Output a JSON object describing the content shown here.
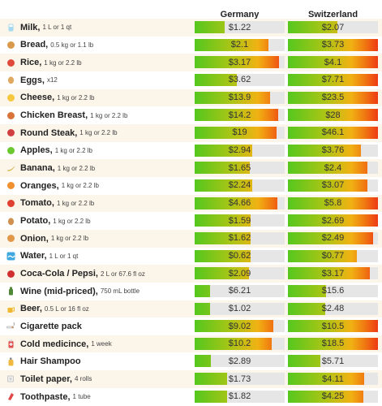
{
  "columns": [
    "Germany",
    "Switzerland"
  ],
  "items": [
    {
      "name": "Milk,",
      "unit": "1 L or 1 qt",
      "icon": "milk-icon",
      "color": "#a6d8f0",
      "de": "$1.22",
      "ch": "$2.07",
      "de_fill": 0.33,
      "ch_fill": 0.55
    },
    {
      "name": "Bread,",
      "unit": "0.5 kg or 1.1 lb",
      "icon": "bread-icon",
      "color": "#d89a4a",
      "de": "$2.1",
      "ch": "$3.73",
      "de_fill": 0.82,
      "ch_fill": 1.0
    },
    {
      "name": "Rice,",
      "unit": "1 kg or 2.2 lb",
      "icon": "rice-icon",
      "color": "#e04a3a",
      "de": "$3.17",
      "ch": "$4.1",
      "de_fill": 0.94,
      "ch_fill": 1.0
    },
    {
      "name": "Eggs,",
      "unit": "x12",
      "icon": "egg-icon",
      "color": "#e0a860",
      "de": "$3.62",
      "ch": "$7.71",
      "de_fill": 0.47,
      "ch_fill": 1.0
    },
    {
      "name": "Cheese,",
      "unit": "1 kg or 2.2 lb",
      "icon": "cheese-icon",
      "color": "#f5c840",
      "de": "$13.9",
      "ch": "$23.5",
      "de_fill": 0.84,
      "ch_fill": 1.0
    },
    {
      "name": "Chicken Breast,",
      "unit": "1 kg or 2.2 lb",
      "icon": "chicken-icon",
      "color": "#d8743a",
      "de": "$14.2",
      "ch": "$28",
      "de_fill": 0.93,
      "ch_fill": 1.0
    },
    {
      "name": "Round Steak,",
      "unit": "1 kg or 2.2 lb",
      "icon": "steak-icon",
      "color": "#d04040",
      "de": "$19",
      "ch": "$46.1",
      "de_fill": 0.91,
      "ch_fill": 1.0
    },
    {
      "name": "Apples,",
      "unit": "1 kg or 2.2 lb",
      "icon": "apple-icon",
      "color": "#6cc830",
      "de": "$2.94",
      "ch": "$3.76",
      "de_fill": 0.64,
      "ch_fill": 0.81
    },
    {
      "name": "Banana,",
      "unit": "1 kg or 2.2 lb",
      "icon": "banana-icon",
      "color": "#f0d040",
      "de": "$1.65",
      "ch": "$2.4",
      "de_fill": 0.61,
      "ch_fill": 0.88
    },
    {
      "name": "Oranges,",
      "unit": "1 kg or 2.2 lb",
      "icon": "orange-icon",
      "color": "#f09030",
      "de": "$2.24",
      "ch": "$3.07",
      "de_fill": 0.64,
      "ch_fill": 0.88
    },
    {
      "name": "Tomato,",
      "unit": "1 kg or 2.2 lb",
      "icon": "tomato-icon",
      "color": "#e04030",
      "de": "$4.66",
      "ch": "$5.8",
      "de_fill": 0.92,
      "ch_fill": 1.0
    },
    {
      "name": "Potato,",
      "unit": "1 kg or 2.2 lb",
      "icon": "potato-icon",
      "color": "#d09050",
      "de": "$1.59",
      "ch": "$2.69",
      "de_fill": 0.62,
      "ch_fill": 1.0
    },
    {
      "name": "Onion,",
      "unit": "1 kg or 2.2 lb",
      "icon": "onion-icon",
      "color": "#e09848",
      "de": "$1.62",
      "ch": "$2.49",
      "de_fill": 0.62,
      "ch_fill": 0.95
    },
    {
      "name": "Water,",
      "unit": "1 L or 1 qt",
      "icon": "water-icon",
      "color": "#40a8e0",
      "de": "$0.62",
      "ch": "$0.77",
      "de_fill": 0.62,
      "ch_fill": 0.77
    },
    {
      "name": "Coca-Cola / Pepsi,",
      "unit": "2 L or 67.6 fl oz",
      "icon": "soda-icon",
      "color": "#d03030",
      "de": "$2.09",
      "ch": "$3.17",
      "de_fill": 0.6,
      "ch_fill": 0.91
    },
    {
      "name": "Wine (mid-priced),",
      "unit": "750 mL bottle",
      "icon": "wine-icon",
      "color": "#508838",
      "de": "$6.21",
      "ch": "$15.6",
      "de_fill": 0.17,
      "ch_fill": 0.42
    },
    {
      "name": "Beer,",
      "unit": "0.5 L or 16 fl oz",
      "icon": "beer-icon",
      "color": "#f0b830",
      "de": "$1.02",
      "ch": "$2.48",
      "de_fill": 0.17,
      "ch_fill": 0.41
    },
    {
      "name": "Cigarette pack",
      "unit": "",
      "icon": "cigarette-icon",
      "color": "#c89060",
      "de": "$9.02",
      "ch": "$10.5",
      "de_fill": 0.87,
      "ch_fill": 1.0
    },
    {
      "name": "Cold medicince,",
      "unit": "1 week",
      "icon": "medicine-icon",
      "color": "#e05050",
      "de": "$10.2",
      "ch": "$18.5",
      "de_fill": 0.86,
      "ch_fill": 1.0
    },
    {
      "name": "Hair Shampoo",
      "unit": "",
      "icon": "shampoo-icon",
      "color": "#f0b840",
      "de": "$2.89",
      "ch": "$5.71",
      "de_fill": 0.18,
      "ch_fill": 0.36
    },
    {
      "name": "Toilet paper,",
      "unit": "4 rolls",
      "icon": "toilet-paper-icon",
      "color": "#c8c8c8",
      "de": "$1.73",
      "ch": "$4.11",
      "de_fill": 0.36,
      "ch_fill": 0.85
    },
    {
      "name": "Toothpaste,",
      "unit": "1 tube",
      "icon": "toothpaste-icon",
      "color": "#e04848",
      "de": "$1.82",
      "ch": "$4.25",
      "de_fill": 0.36,
      "ch_fill": 0.84
    }
  ]
}
